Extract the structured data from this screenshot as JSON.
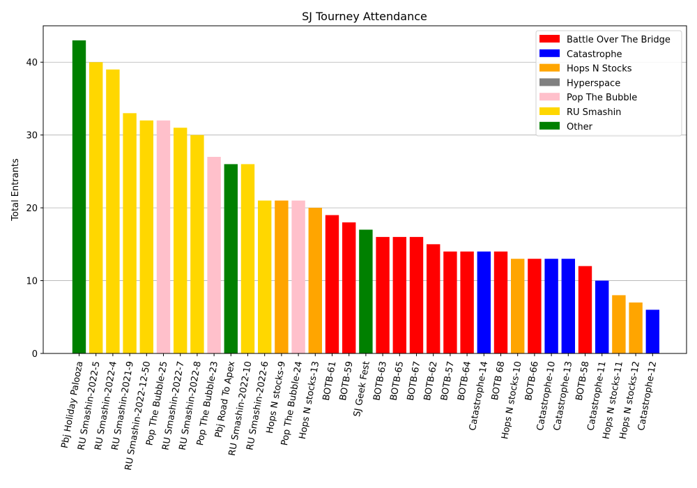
{
  "chart_data": {
    "type": "bar",
    "title": "SJ Tourney Attendance",
    "xlabel": "",
    "ylabel": "Total Entrants",
    "ylim": [
      0,
      45
    ],
    "yticks": [
      0,
      10,
      20,
      30,
      40
    ],
    "grid": "y",
    "legend_position": "top-right",
    "legend": [
      {
        "name": "Battle Over The Bridge",
        "color": "#ff0000"
      },
      {
        "name": "Catastrophe",
        "color": "#0000ff"
      },
      {
        "name": "Hops N Stocks",
        "color": "#ffa500"
      },
      {
        "name": "Hyperspace",
        "color": "#808080"
      },
      {
        "name": "Pop The Bubble",
        "color": "#ffc0cb"
      },
      {
        "name": "RU Smashin",
        "color": "#ffd700"
      },
      {
        "name": "Other",
        "color": "#008000"
      }
    ],
    "categories": [
      "Pbj Holiday Palooza",
      "RU Smashin-2022-5",
      "RU Smashin-2022-4",
      "RU Smashin-2021-9",
      "RU Smashin-2022-12-50",
      "Pop The Bubble-25",
      "RU Smashin-2022-7",
      "RU Smashin-2022-8",
      "Pop The Bubble-23",
      "Pbj Road To Apex",
      "RU Smashin-2022-10",
      "RU Smashin-2022-6",
      "Hops N stocks-9",
      "Pop The Bubble-24",
      "Hops N stocks-13",
      "BOTB-61",
      "BOTB-59",
      "SJ Geek Fest",
      "BOTB-63",
      "BOTB-65",
      "BOTB-67",
      "BOTB-62",
      "BOTB-57",
      "BOTB-64",
      "Catastrophe-14",
      "BOTB 68",
      "Hops N stocks-10",
      "BOTB-66",
      "Catastrophe-10",
      "Catastrophe-13",
      "BOTB-58",
      "Catastrophe-11",
      "Hops N stocks-11",
      "Hops N stocks-12",
      "Catastrophe-12"
    ],
    "values": [
      43,
      40,
      39,
      33,
      32,
      32,
      31,
      30,
      27,
      26,
      26,
      21,
      21,
      21,
      20,
      19,
      18,
      17,
      16,
      16,
      16,
      15,
      14,
      14,
      14,
      14,
      13,
      13,
      13,
      13,
      12,
      10,
      8,
      7,
      6
    ],
    "bar_series": [
      "Other",
      "RU Smashin",
      "RU Smashin",
      "RU Smashin",
      "RU Smashin",
      "Pop The Bubble",
      "RU Smashin",
      "RU Smashin",
      "Pop The Bubble",
      "Other",
      "RU Smashin",
      "RU Smashin",
      "Hops N Stocks",
      "Pop The Bubble",
      "Hops N Stocks",
      "Battle Over The Bridge",
      "Battle Over The Bridge",
      "Other",
      "Battle Over The Bridge",
      "Battle Over The Bridge",
      "Battle Over The Bridge",
      "Battle Over The Bridge",
      "Battle Over The Bridge",
      "Battle Over The Bridge",
      "Catastrophe",
      "Battle Over The Bridge",
      "Hops N Stocks",
      "Battle Over The Bridge",
      "Catastrophe",
      "Catastrophe",
      "Battle Over The Bridge",
      "Catastrophe",
      "Hops N Stocks",
      "Hops N Stocks",
      "Catastrophe"
    ]
  }
}
